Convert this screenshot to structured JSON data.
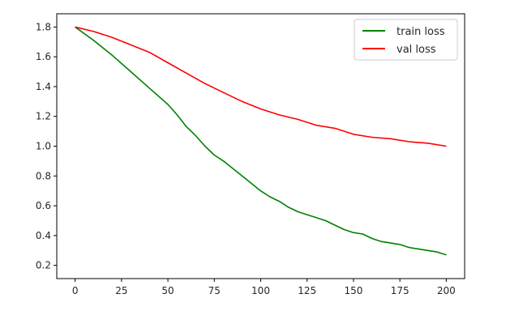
{
  "chart_data": {
    "type": "line",
    "xlim": [
      0,
      200
    ],
    "ylim": [
      0.2,
      1.8
    ],
    "x_ticks": [
      0,
      25,
      50,
      75,
      100,
      125,
      150,
      175,
      200
    ],
    "y_ticks": [
      0.2,
      0.4,
      0.6,
      0.8,
      1.0,
      1.2,
      1.4,
      1.6,
      1.8
    ],
    "x_tick_labels": [
      "0",
      "25",
      "50",
      "75",
      "100",
      "125",
      "150",
      "175",
      "200"
    ],
    "y_tick_labels": [
      "0.2",
      "0.4",
      "0.6",
      "0.8",
      "1.0",
      "1.2",
      "1.4",
      "1.6",
      "1.8"
    ],
    "grid": false,
    "legend": "top-right",
    "series": [
      {
        "name": "train loss",
        "color": "#008000",
        "x": [
          0,
          10,
          20,
          30,
          40,
          50,
          55,
          60,
          65,
          70,
          75,
          80,
          85,
          90,
          95,
          100,
          105,
          110,
          115,
          120,
          125,
          130,
          135,
          140,
          145,
          150,
          155,
          160,
          165,
          170,
          175,
          180,
          185,
          190,
          195,
          200
        ],
        "values": [
          1.8,
          1.71,
          1.61,
          1.5,
          1.39,
          1.28,
          1.21,
          1.13,
          1.07,
          1.0,
          0.94,
          0.9,
          0.85,
          0.8,
          0.75,
          0.7,
          0.66,
          0.63,
          0.59,
          0.56,
          0.54,
          0.52,
          0.5,
          0.47,
          0.44,
          0.42,
          0.41,
          0.38,
          0.36,
          0.35,
          0.34,
          0.32,
          0.31,
          0.3,
          0.29,
          0.27
        ]
      },
      {
        "name": "val loss",
        "color": "#ff0000",
        "x": [
          0,
          10,
          20,
          30,
          40,
          50,
          60,
          70,
          80,
          90,
          100,
          110,
          120,
          130,
          140,
          150,
          160,
          170,
          180,
          190,
          200
        ],
        "values": [
          1.8,
          1.77,
          1.73,
          1.68,
          1.63,
          1.56,
          1.49,
          1.42,
          1.36,
          1.3,
          1.25,
          1.21,
          1.18,
          1.14,
          1.12,
          1.08,
          1.06,
          1.05,
          1.03,
          1.02,
          1.0
        ]
      }
    ]
  }
}
